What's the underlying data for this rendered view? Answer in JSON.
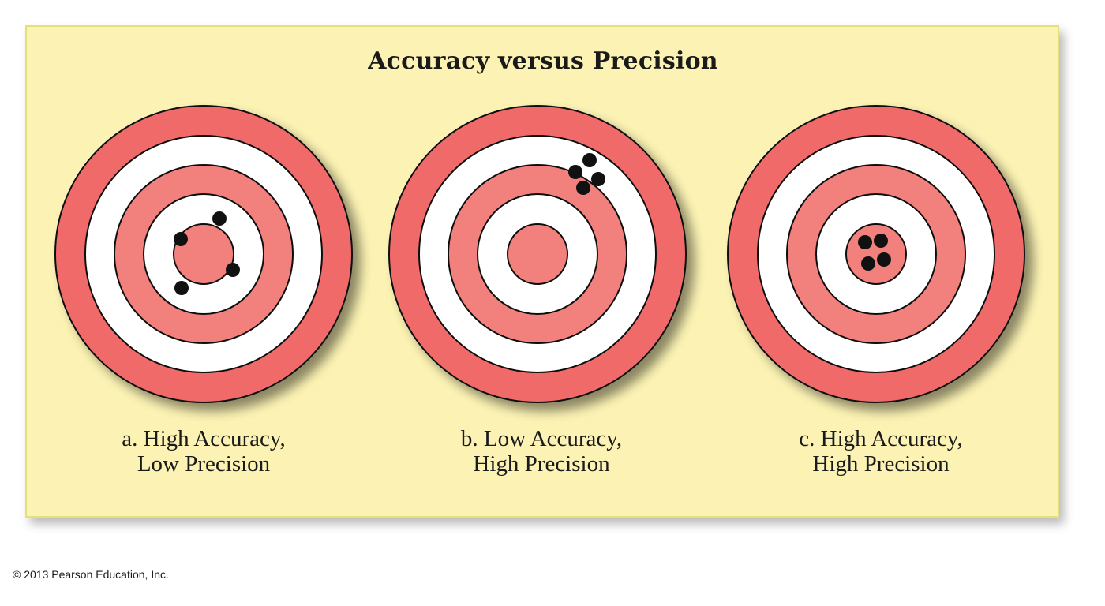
{
  "title": "Accuracy versus Precision",
  "colors": {
    "panel_bg": "#fbf2b3",
    "outer_ring": "#f06a6b",
    "inner_ring": "#f2817d",
    "white_ring": "#ffffff",
    "hit": "#111111"
  },
  "targets": [
    {
      "id": "a",
      "line1": "a. High Accuracy,",
      "line2": "Low Precision"
    },
    {
      "id": "b",
      "line1": "b. Low Accuracy,",
      "line2": "High Precision"
    },
    {
      "id": "c",
      "line1": "c. High Accuracy,",
      "line2": "High Precision"
    }
  ],
  "copyright": "© 2013 Pearson Education, Inc."
}
